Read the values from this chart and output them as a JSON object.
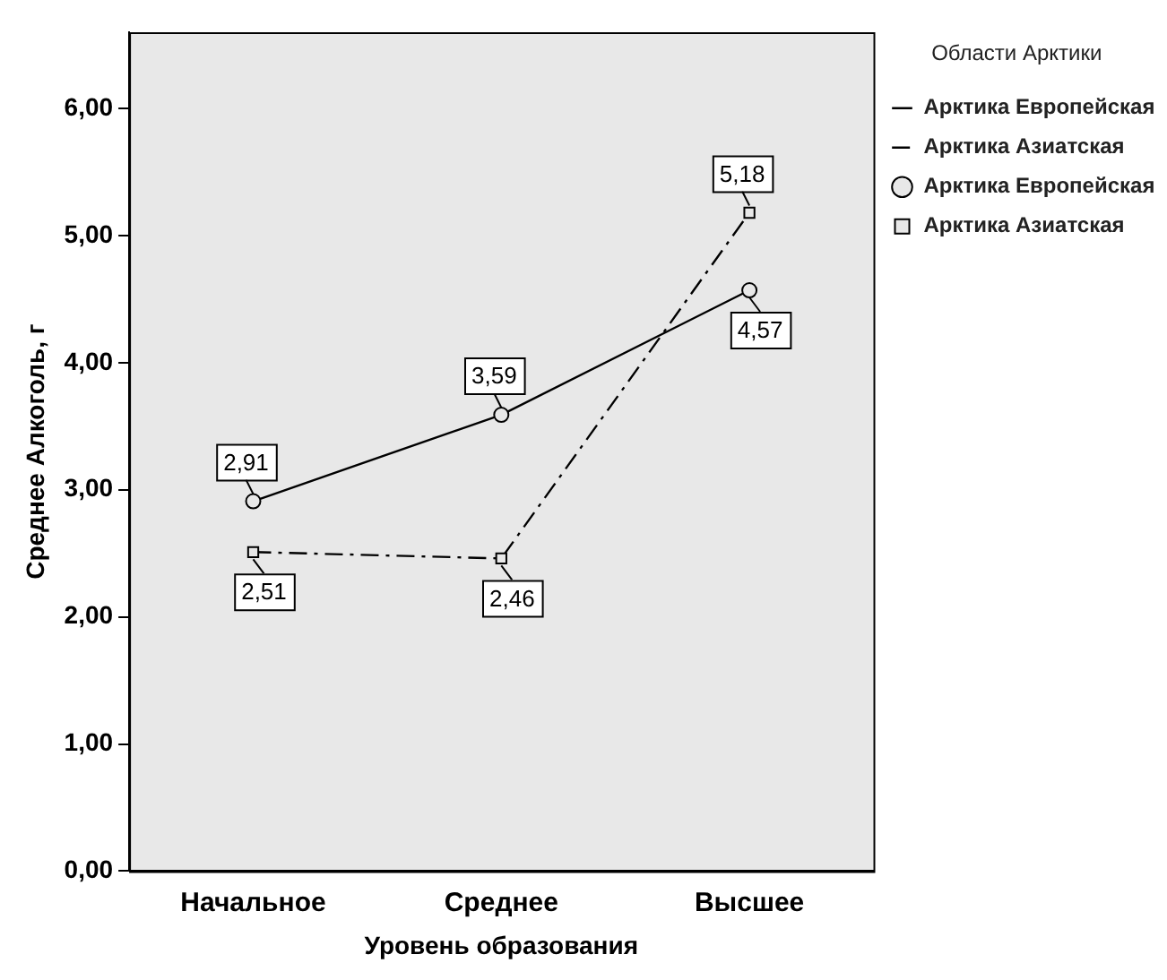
{
  "chart_data": {
    "type": "line",
    "xlabel": "Уровень образования",
    "ylabel": "Среднее Алкоголь, г",
    "legend_title": "Области Арктики",
    "categories": [
      "Начальное",
      "Среднее",
      "Высшее"
    ],
    "series": [
      {
        "name": "Арктика Европейская",
        "color": "#000000",
        "values": [
          2.91,
          3.59,
          4.57
        ],
        "value_labels": [
          "2,91",
          "3,59",
          "4,57"
        ],
        "line_style": "solid",
        "marker": "circle"
      },
      {
        "name": "Арктика Азиатская",
        "color": "#000000",
        "values": [
          2.51,
          2.46,
          5.18
        ],
        "value_labels": [
          "2,51",
          "2,46",
          "5,18"
        ],
        "line_style": "dashed",
        "marker": "square"
      }
    ],
    "ylim": [
      0,
      6.6
    ],
    "yticks": [
      {
        "value": 0,
        "label": "0,00"
      },
      {
        "value": 1,
        "label": "1,00"
      },
      {
        "value": 2,
        "label": "2,00"
      },
      {
        "value": 3,
        "label": "3,00"
      },
      {
        "value": 4,
        "label": "4,00"
      },
      {
        "value": 5,
        "label": "5,00"
      },
      {
        "value": 6,
        "label": "6,00"
      }
    ],
    "grid": false,
    "legend": "top right"
  }
}
